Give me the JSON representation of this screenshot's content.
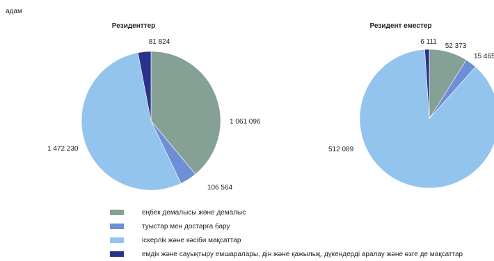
{
  "unit_label": "адам",
  "colors": {
    "recreation": "#85A095",
    "family": "#6E8FD6",
    "business": "#92C4EE",
    "other": "#2A3289"
  },
  "chart_data": [
    {
      "type": "pie",
      "title": "Резиденттер",
      "slices": [
        {
          "label": "еңбек демалысы және демалыс",
          "value": 1061096,
          "value_label": "1 061 096",
          "color_key": "recreation"
        },
        {
          "label": "туыстар мен достарға бару",
          "value": 106564,
          "value_label": "106 564",
          "color_key": "family"
        },
        {
          "label": "іскерлік және кәсіби мақсаттар",
          "value": 1472230,
          "value_label": "1 472 230",
          "color_key": "business"
        },
        {
          "label": "емдік және сауықтыру емшаралары, дін және қажылық, дүкендерді аралау және өзге де мақсаттар",
          "value": 81824,
          "value_label": "81 824",
          "color_key": "other"
        }
      ]
    },
    {
      "type": "pie",
      "title": "Резидент еместер",
      "slices": [
        {
          "label": "еңбек демалысы және демалыс",
          "value": 52373,
          "value_label": "52 373",
          "color_key": "recreation"
        },
        {
          "label": "туыстар мен достарға бару",
          "value": 15465,
          "value_label": "15 465",
          "color_key": "family"
        },
        {
          "label": "іскерлік және кәсіби мақсаттар",
          "value": 512089,
          "value_label": "512 089",
          "color_key": "business"
        },
        {
          "label": "емдік және сауықтыру емшаралары, дін және қажылық, дүкендерді аралау және өзге де мақсаттар",
          "value": 6111,
          "value_label": "6 111",
          "color_key": "other"
        }
      ]
    }
  ],
  "legend": [
    {
      "label": "еңбек демалысы және демалыс",
      "color_key": "recreation"
    },
    {
      "label": "туыстар мен достарға бару",
      "color_key": "family"
    },
    {
      "label": "іскерлік және кәсіби мақсаттар",
      "color_key": "business"
    },
    {
      "label": "емдік және сауықтыру емшаралары, дін және қажылық, дүкендерді аралау және өзге де мақсаттар",
      "color_key": "other"
    }
  ]
}
